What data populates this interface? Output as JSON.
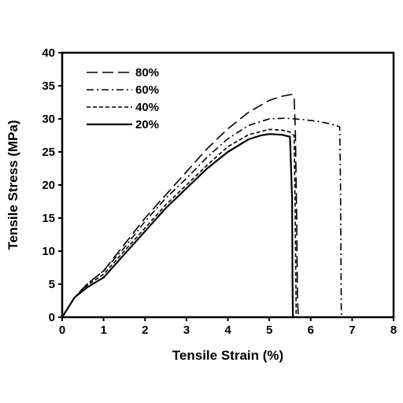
{
  "chart_data": {
    "type": "line",
    "title": "",
    "xlabel": "Tensile Strain (%)",
    "ylabel": "Tensile Stress (MPa)",
    "xlim": [
      0,
      8
    ],
    "ylim": [
      0,
      40
    ],
    "xticks": [
      "0",
      "1",
      "2",
      "3",
      "4",
      "5",
      "6",
      "7",
      "8"
    ],
    "yticks": [
      "0",
      "5",
      "10",
      "15",
      "20",
      "25",
      "30",
      "35",
      "40"
    ],
    "grid": false,
    "legend_position": "top-left",
    "series": [
      {
        "name": "80%",
        "dash": "long-dash",
        "x": [
          0,
          0.3,
          0.6,
          1.0,
          1.5,
          2.0,
          2.5,
          3.0,
          3.5,
          4.0,
          4.5,
          5.0,
          5.3,
          5.55,
          5.6,
          5.63,
          5.66,
          5.68,
          5.7
        ],
        "y": [
          0,
          3.0,
          5.0,
          7.0,
          11.0,
          15.0,
          18.5,
          22.0,
          25.5,
          28.5,
          31.0,
          32.8,
          33.4,
          33.7,
          33.2,
          28.0,
          15.0,
          3.0,
          0
        ]
      },
      {
        "name": "60%",
        "dash": "dash-dot",
        "x": [
          0,
          0.3,
          0.6,
          1.0,
          1.5,
          2.0,
          2.5,
          3.0,
          3.5,
          4.0,
          4.5,
          5.0,
          5.4,
          5.8,
          6.2,
          6.5,
          6.7,
          6.72,
          6.73,
          6.74
        ],
        "y": [
          0,
          3.0,
          5.0,
          7.0,
          10.5,
          14.5,
          18.0,
          21.0,
          24.2,
          27.0,
          29.0,
          30.0,
          30.1,
          29.9,
          29.6,
          29.2,
          28.8,
          20.0,
          8.0,
          0
        ]
      },
      {
        "name": "40%",
        "dash": "short-dash",
        "x": [
          0,
          0.3,
          0.6,
          1.0,
          1.5,
          2.0,
          2.5,
          3.0,
          3.5,
          4.0,
          4.5,
          5.0,
          5.3,
          5.5,
          5.6,
          5.62,
          5.64,
          5.65
        ],
        "y": [
          0,
          3.0,
          4.8,
          6.5,
          10.0,
          13.5,
          17.0,
          20.0,
          23.0,
          25.8,
          27.6,
          28.4,
          28.3,
          28.0,
          27.5,
          18.0,
          6.0,
          0
        ]
      },
      {
        "name": "20%",
        "dash": "solid",
        "x": [
          0,
          0.3,
          0.6,
          1.0,
          1.5,
          2.0,
          2.5,
          3.0,
          3.5,
          4.0,
          4.5,
          4.8,
          5.0,
          5.3,
          5.5,
          5.55,
          5.56,
          5.57
        ],
        "y": [
          0,
          3.0,
          4.5,
          6.0,
          9.5,
          13.0,
          16.5,
          19.5,
          22.5,
          25.0,
          26.9,
          27.5,
          27.7,
          27.6,
          27.3,
          18.0,
          6.0,
          0
        ]
      }
    ]
  }
}
